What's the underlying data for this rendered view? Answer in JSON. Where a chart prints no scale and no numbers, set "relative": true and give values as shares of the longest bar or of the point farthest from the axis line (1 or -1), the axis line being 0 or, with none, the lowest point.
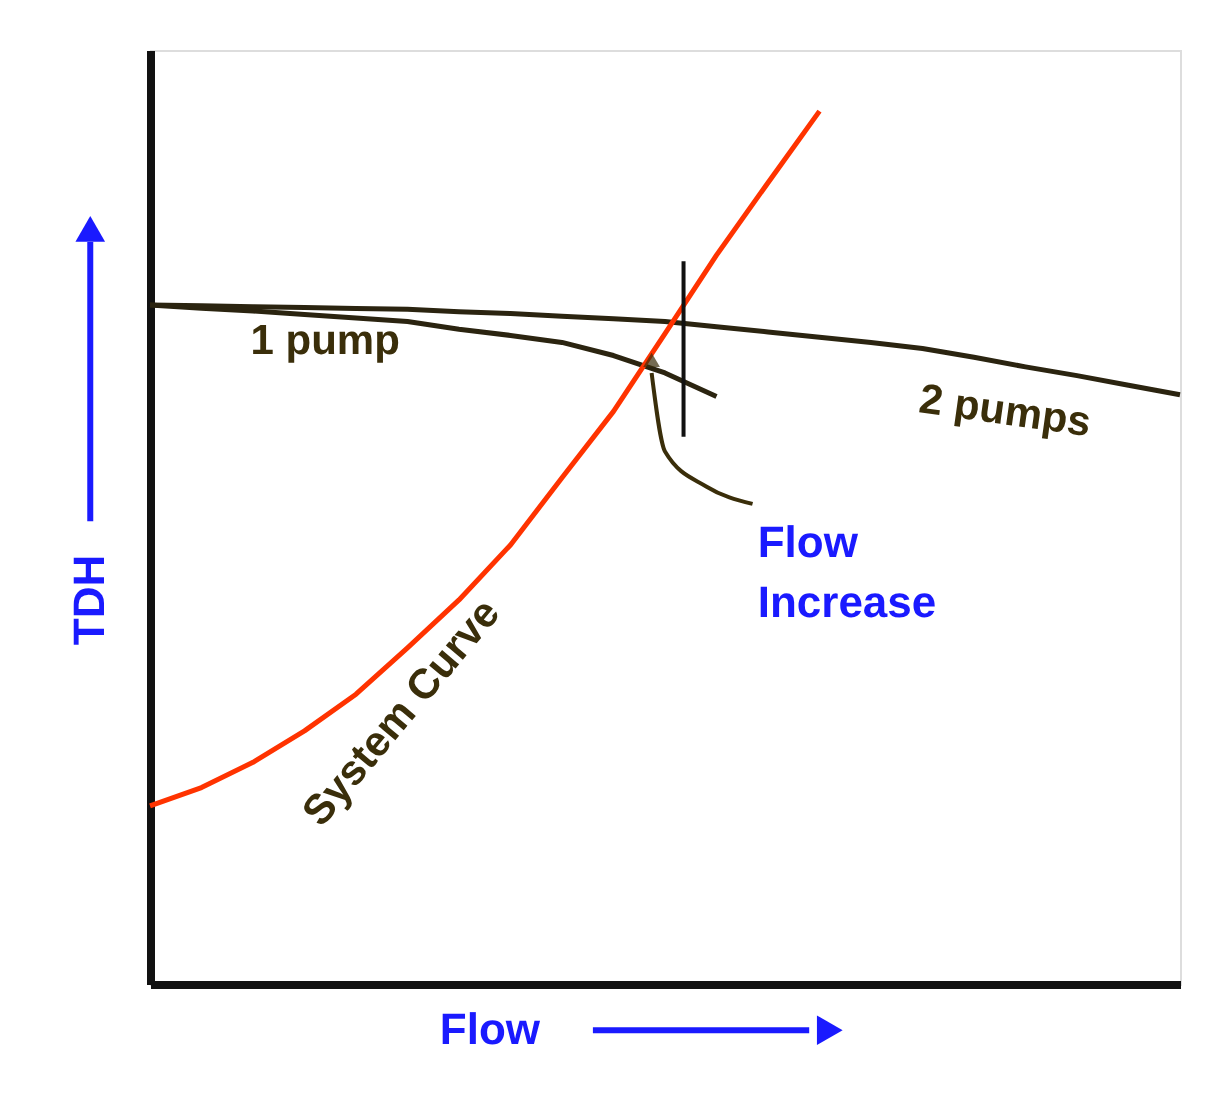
{
  "chart_data": {
    "type": "line",
    "relative": true,
    "xlabel": "Flow",
    "ylabel": "TDH",
    "ylim": [
      0,
      1.07
    ],
    "marker": "none",
    "line_style": "solid",
    "categories": [
      null,
      null,
      null,
      null,
      null,
      null,
      null,
      null,
      null,
      null,
      null,
      null,
      null,
      null,
      null,
      null,
      null,
      null,
      null,
      null,
      null
    ],
    "series": [
      {
        "name": "1 pump",
        "color": "#2b2410",
        "values": [
          0.778,
          0.774,
          0.771,
          0.767,
          0.763,
          0.759,
          0.75,
          0.743,
          0.735,
          0.72,
          0.7,
          0.673,
          null,
          null,
          null,
          null,
          null,
          null,
          null,
          null,
          null
        ]
      },
      {
        "name": "2 pumps",
        "color": "#2b2410",
        "values": [
          0.778,
          0.777,
          0.776,
          0.775,
          0.774,
          0.773,
          0.77,
          0.768,
          0.765,
          0.762,
          0.759,
          0.753,
          0.747,
          0.741,
          0.735,
          0.728,
          0.718,
          0.707,
          0.697,
          0.686,
          0.675
        ]
      },
      {
        "name": "System Curve",
        "color": "#ff3300",
        "values": [
          0.204,
          0.225,
          0.254,
          0.29,
          0.332,
          0.385,
          0.44,
          0.503,
          0.58,
          0.656,
          0.745,
          0.835,
          0.918,
          1.0,
          null,
          null,
          null,
          null,
          null,
          null,
          null
        ]
      }
    ],
    "annotations": [
      "Flow Increase"
    ]
  }
}
